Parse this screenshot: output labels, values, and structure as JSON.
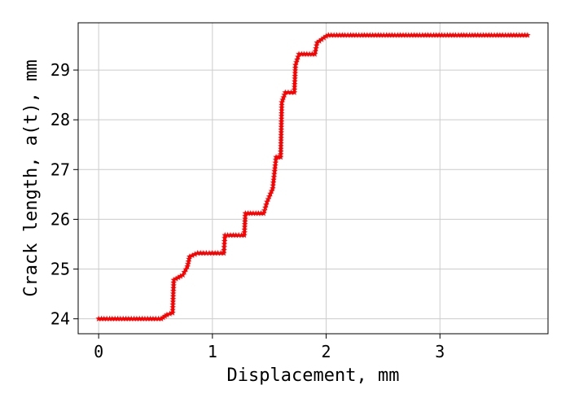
{
  "chart_data": {
    "type": "line",
    "title": "",
    "xlabel": "Displacement, mm",
    "ylabel": "Crack length, a(t), mm",
    "xlim": [
      -0.18,
      3.95
    ],
    "ylim": [
      23.7,
      29.95
    ],
    "xticks": [
      0,
      1,
      2,
      3
    ],
    "yticks": [
      24,
      25,
      26,
      27,
      28,
      29
    ],
    "grid": true,
    "legend": "none",
    "colors": {
      "line": "#ff0000",
      "grid": "#cccccc",
      "axes": "#000000"
    },
    "series": [
      {
        "line_style": "dashed",
        "marker": "star",
        "x": [
          0,
          0.55,
          0.6,
          0.65,
          0.66,
          0.74,
          0.78,
          0.8,
          0.87,
          1.1,
          1.11,
          1.28,
          1.29,
          1.45,
          1.48,
          1.53,
          1.56,
          1.6,
          1.61,
          1.64,
          1.72,
          1.73,
          1.76,
          1.9,
          1.92,
          2.0,
          2.02,
          3.77
        ],
        "y": [
          24.0,
          24.0,
          24.08,
          24.12,
          24.78,
          24.88,
          25.05,
          25.25,
          25.32,
          25.32,
          25.68,
          25.68,
          26.12,
          26.12,
          26.35,
          26.62,
          27.25,
          27.25,
          28.35,
          28.55,
          28.55,
          29.1,
          29.32,
          29.32,
          29.55,
          29.68,
          29.7,
          29.7
        ]
      }
    ]
  }
}
